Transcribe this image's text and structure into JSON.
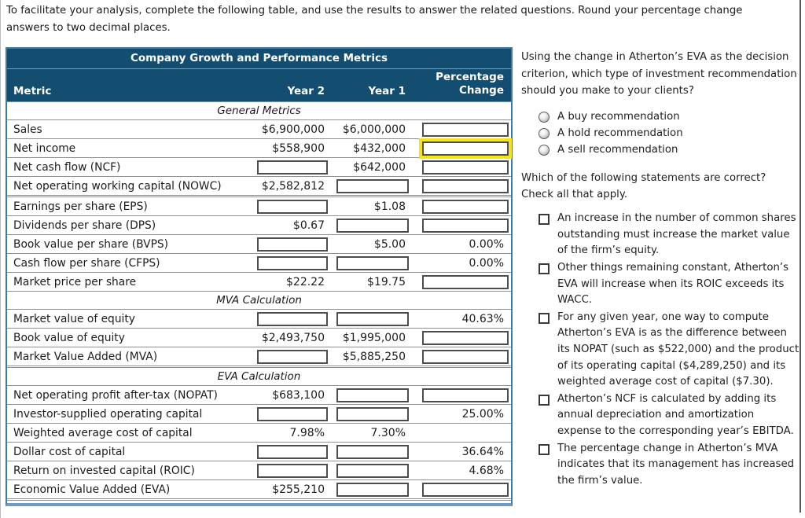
{
  "instructions": "To facilitate your analysis, complete the following table, and use the results to answer the related questions. Round your percentage change answers to two decimal places.",
  "table": {
    "title": "Company Growth and Performance Metrics",
    "col_metric": "Metric",
    "col_year2": "Year 2",
    "col_year1": "Year 1",
    "col_pct": "Percentage\nChange",
    "sections": [
      {
        "label": "General Metrics",
        "rows": [
          {
            "metric": "Sales",
            "y2": "$6,900,000",
            "y1": "$6,000,000",
            "pct": "input"
          },
          {
            "metric": "Net income",
            "y2": "$558,900",
            "y1": "$432,000",
            "pct": "input-focus"
          },
          {
            "metric": "Net cash flow (NCF)",
            "y2": "input",
            "y1": "$642,000",
            "pct": "input"
          },
          {
            "metric": "Net operating working capital (NOWC)",
            "y2": "$2,582,812",
            "y1": "input",
            "pct": "input"
          },
          {
            "metric": "Earnings per share (EPS)",
            "y2": "input",
            "y1": "$1.08",
            "pct": "input",
            "divider": "double"
          },
          {
            "metric": "Dividends per share (DPS)",
            "y2": "$0.67",
            "y1": "input",
            "pct": "input"
          },
          {
            "metric": "Book value per share (BVPS)",
            "y2": "input",
            "y1": "$5.00",
            "pct": "0.00%"
          },
          {
            "metric": "Cash flow per share (CFPS)",
            "y2": "input",
            "y1": "input",
            "pct": "0.00%"
          },
          {
            "metric": "Market price per share",
            "y2": "$22.22",
            "y1": "$19.75",
            "pct": "input"
          }
        ]
      },
      {
        "label": "MVA Calculation",
        "rows": [
          {
            "metric": "Market value of equity",
            "y2": "input",
            "y1": "input",
            "pct": "40.63%"
          },
          {
            "metric": "Book value of equity",
            "y2": "$2,493,750",
            "y1": "$1,995,000",
            "pct": "input"
          },
          {
            "metric": "Market Value Added (MVA)",
            "y2": "input",
            "y1": "$5,885,250",
            "pct": "input"
          }
        ]
      },
      {
        "label": "EVA Calculation",
        "divider": "double",
        "rows": [
          {
            "metric": "Net operating profit after-tax (NOPAT)",
            "y2": "$683,100",
            "y1": "input",
            "pct": "input"
          },
          {
            "metric": "Investor-supplied operating capital",
            "y2": "input",
            "y1": "input",
            "pct": "25.00%"
          },
          {
            "metric": "Weighted average cost of capital",
            "y2": "7.98%",
            "y1": "7.30%",
            "pct": ""
          },
          {
            "metric": "Dollar cost of capital",
            "y2": "input",
            "y1": "input",
            "pct": "36.64%"
          },
          {
            "metric": "Return on invested capital (ROIC)",
            "y2": "input",
            "y1": "input",
            "pct": "4.68%"
          },
          {
            "metric": "Economic Value Added (EVA)",
            "y2": "$255,210",
            "y1": "input",
            "pct": "input"
          }
        ]
      }
    ]
  },
  "question1": {
    "prompt": "Using the change in Atherton’s EVA as the decision criterion, which type of investment recommendation should you make to your clients?",
    "options": [
      "A buy recommendation",
      "A hold recommendation",
      "A sell recommendation"
    ]
  },
  "question2": {
    "prompt": "Which of the following statements are correct? Check all that apply.",
    "options": [
      "An increase in the number of common shares outstanding must increase the market value of the firm’s equity.",
      "Other things remaining constant, Atherton’s EVA will increase when its ROIC exceeds its WACC.",
      "For any given year, one way to compute Atherton’s EVA is as the difference between its NOPAT (such as $522,000) and the product of its operating capital ($4,289,250) and its weighted average cost of capital ($7.30).",
      "Atherton’s NCF is calculated by adding its annual depreciation and amortization expense to the corresponding year’s EBITDA.",
      "The percentage change in Atherton’s MVA indicates that its management has increased the firm’s value."
    ]
  },
  "colors": {
    "header_bg": "#134e70",
    "table_border": "#3e7ca8",
    "table_border_bottom": "#6f9cbe",
    "row_line": "#8f8f8f",
    "input_border": "#4d4d4d",
    "focus_highlight": "#f4e418"
  }
}
